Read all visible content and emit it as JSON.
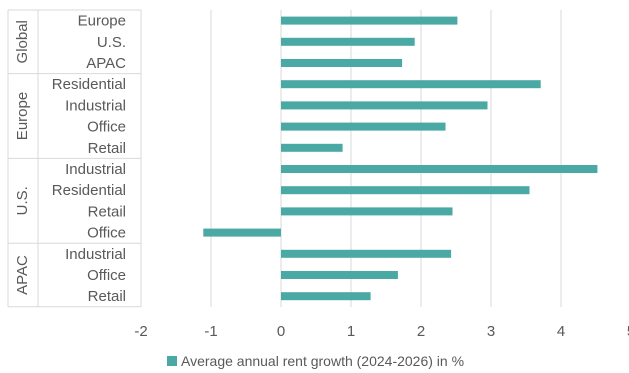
{
  "chart_data": {
    "type": "bar",
    "orientation": "horizontal",
    "title": "",
    "xlabel": "",
    "ylabel": "",
    "xlim": [
      -2,
      5
    ],
    "x_ticks": [
      "-2",
      "-1",
      "0",
      "1",
      "2",
      "3",
      "4",
      "5"
    ],
    "grid": "vertical",
    "legend_position": "bottom",
    "bar_color": "#4aa8a5",
    "groups": [
      {
        "label": "Global",
        "categories": [
          "Europe",
          "U.S.",
          "APAC"
        ]
      },
      {
        "label": "Europe",
        "categories": [
          "Residential",
          "Industrial",
          "Office",
          "Retail"
        ]
      },
      {
        "label": "U.S.",
        "categories": [
          "Industrial",
          "Residential",
          "Retail",
          "Office"
        ]
      },
      {
        "label": "APAC",
        "categories": [
          "Industrial",
          "Office",
          "Retail"
        ]
      }
    ],
    "series": [
      {
        "name": "Average annual rent growth (2024-2026) in %",
        "values": [
          2.52,
          1.91,
          1.73,
          3.71,
          2.95,
          2.35,
          0.88,
          4.52,
          3.55,
          2.45,
          -1.11,
          2.43,
          1.67,
          1.28
        ]
      }
    ]
  }
}
